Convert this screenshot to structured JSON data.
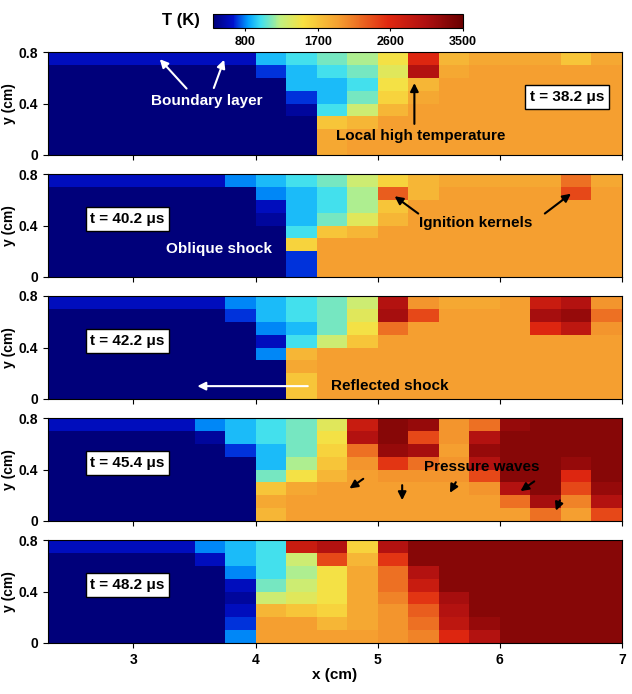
{
  "colorbar": {
    "label": "T (K)",
    "range": [
      400,
      3500
    ],
    "ticks": [
      800,
      1700,
      2600,
      3500
    ]
  },
  "chart_data": [
    {
      "type": "heatmap",
      "xlim": [
        2.3,
        7
      ],
      "ylim": [
        0,
        0.8
      ],
      "xticks": [
        3,
        4,
        5,
        6,
        7
      ],
      "yticks": [
        0,
        0.4,
        0.8
      ],
      "ylabel": "y (cm)",
      "tick_labels": "y",
      "annotations": [
        "t = 38.2 μs",
        "Boundary layer",
        "Local high temperature"
      ],
      "x_edges": [
        2.3,
        2.5,
        2.75,
        3,
        3.25,
        3.5,
        3.75,
        4,
        4.25,
        4.5,
        4.75,
        5,
        5.25,
        5.5,
        5.75,
        6,
        6.25,
        6.5,
        6.75,
        7
      ],
      "y_edges": [
        0.8,
        0.7,
        0.6,
        0.5,
        0.4,
        0.3,
        0.2,
        0.1,
        0
      ],
      "cells": [
        [
          600,
          600,
          600,
          600,
          600,
          600,
          600,
          900,
          1000,
          1100,
          1200,
          1500,
          2600,
          1800,
          1900,
          1900,
          1900,
          1700,
          1900
        ],
        [
          400,
          400,
          400,
          400,
          400,
          400,
          400,
          700,
          900,
          1000,
          1100,
          1400,
          3000,
          1900,
          1950,
          1950,
          1950,
          1950,
          1950
        ],
        [
          400,
          400,
          400,
          400,
          400,
          400,
          400,
          400,
          900,
          900,
          1000,
          1500,
          1800,
          1950,
          1950,
          1950,
          1950,
          1950,
          1950
        ],
        [
          400,
          400,
          400,
          400,
          400,
          400,
          400,
          400,
          700,
          900,
          1100,
          1600,
          1900,
          1950,
          1950,
          1950,
          1950,
          1950,
          1950
        ],
        [
          400,
          400,
          400,
          400,
          400,
          400,
          400,
          400,
          500,
          1000,
          1300,
          1800,
          1950,
          1950,
          1950,
          1950,
          1950,
          1950,
          1950
        ],
        [
          400,
          400,
          400,
          400,
          400,
          400,
          400,
          400,
          400,
          1700,
          1800,
          1950,
          1950,
          1950,
          1950,
          1950,
          1950,
          1950,
          1950
        ],
        [
          400,
          400,
          400,
          400,
          400,
          400,
          400,
          400,
          400,
          1900,
          1950,
          1950,
          1950,
          1950,
          1950,
          1950,
          1950,
          1950,
          1950
        ],
        [
          400,
          400,
          400,
          400,
          400,
          400,
          400,
          400,
          400,
          1900,
          1950,
          1950,
          1950,
          1950,
          1950,
          1950,
          1950,
          1950,
          1950
        ]
      ]
    },
    {
      "type": "heatmap",
      "xlim": [
        2.3,
        7
      ],
      "ylim": [
        0,
        0.8
      ],
      "xticks": [
        3,
        4,
        5,
        6,
        7
      ],
      "yticks": [
        0,
        0.4,
        0.8
      ],
      "ylabel": "y (cm)",
      "tick_labels": "y",
      "annotations": [
        "t = 40.2 μs",
        "Oblique shock",
        "Ignition kernels"
      ],
      "x_edges": [
        2.3,
        2.5,
        2.75,
        3,
        3.25,
        3.5,
        3.75,
        4,
        4.25,
        4.5,
        4.75,
        5,
        5.25,
        5.5,
        5.75,
        6,
        6.25,
        6.5,
        6.75,
        7
      ],
      "y_edges": [
        0.8,
        0.7,
        0.6,
        0.5,
        0.4,
        0.3,
        0.2,
        0.1,
        0
      ],
      "cells": [
        [
          600,
          600,
          600,
          600,
          600,
          600,
          800,
          900,
          1000,
          1100,
          1300,
          1600,
          1800,
          1900,
          1900,
          1900,
          1900,
          2200,
          1900
        ],
        [
          400,
          400,
          400,
          400,
          400,
          400,
          400,
          800,
          900,
          1000,
          1200,
          2300,
          1800,
          1950,
          1950,
          1950,
          1950,
          2400,
          1950
        ],
        [
          400,
          400,
          400,
          400,
          400,
          400,
          400,
          600,
          900,
          1000,
          1200,
          1700,
          1950,
          1950,
          1950,
          1950,
          1950,
          1950,
          1950
        ],
        [
          400,
          400,
          400,
          400,
          400,
          400,
          400,
          500,
          900,
          1100,
          1400,
          1800,
          1950,
          1950,
          1950,
          1950,
          1950,
          1950,
          1950
        ],
        [
          400,
          400,
          400,
          400,
          400,
          400,
          400,
          400,
          1000,
          1700,
          1800,
          1950,
          1950,
          1950,
          1950,
          1950,
          1950,
          1950,
          1950
        ],
        [
          400,
          400,
          400,
          400,
          400,
          400,
          400,
          400,
          1600,
          1950,
          1950,
          1950,
          1950,
          1950,
          1950,
          1950,
          1950,
          1950,
          1950
        ],
        [
          400,
          400,
          400,
          400,
          400,
          400,
          400,
          400,
          700,
          1950,
          1950,
          1950,
          1950,
          1950,
          1950,
          1950,
          1950,
          1950,
          1950
        ],
        [
          400,
          400,
          400,
          400,
          400,
          400,
          400,
          400,
          700,
          1950,
          1950,
          1950,
          1950,
          1950,
          1950,
          1950,
          1950,
          1950,
          1950
        ]
      ]
    },
    {
      "type": "heatmap",
      "xlim": [
        2.3,
        7
      ],
      "ylim": [
        0,
        0.8
      ],
      "xticks": [
        3,
        4,
        5,
        6,
        7
      ],
      "yticks": [
        0,
        0.4,
        0.8
      ],
      "ylabel": "y (cm)",
      "tick_labels": "y",
      "annotations": [
        "t = 42.2 μs",
        "Reflected shock"
      ],
      "x_edges": [
        2.3,
        2.5,
        2.75,
        3,
        3.25,
        3.5,
        3.75,
        4,
        4.25,
        4.5,
        4.75,
        5,
        5.25,
        5.5,
        5.75,
        6,
        6.25,
        6.5,
        6.75,
        7
      ],
      "y_edges": [
        0.8,
        0.7,
        0.6,
        0.5,
        0.4,
        0.3,
        0.2,
        0.1,
        0
      ],
      "cells": [
        [
          600,
          600,
          600,
          600,
          600,
          600,
          800,
          900,
          1000,
          1100,
          1300,
          3000,
          2000,
          1900,
          1900,
          1950,
          2800,
          3000,
          2000
        ],
        [
          400,
          400,
          400,
          400,
          400,
          400,
          700,
          900,
          1000,
          1100,
          1400,
          3100,
          2400,
          1950,
          1950,
          1950,
          3100,
          3200,
          2200
        ],
        [
          400,
          400,
          400,
          400,
          400,
          400,
          400,
          800,
          900,
          1100,
          1500,
          2200,
          1950,
          1950,
          1950,
          1950,
          2600,
          2900,
          2000
        ],
        [
          400,
          400,
          400,
          400,
          400,
          400,
          400,
          600,
          1000,
          1300,
          1700,
          1950,
          1950,
          1950,
          1950,
          1950,
          1950,
          1950,
          1950
        ],
        [
          400,
          400,
          400,
          400,
          400,
          400,
          400,
          800,
          1800,
          1950,
          1950,
          1950,
          1950,
          1950,
          1950,
          1950,
          1950,
          1950,
          1950
        ],
        [
          400,
          400,
          400,
          400,
          400,
          400,
          400,
          400,
          1900,
          1950,
          1950,
          1950,
          1950,
          1950,
          1950,
          1950,
          1950,
          1950,
          1950
        ],
        [
          400,
          400,
          400,
          400,
          400,
          400,
          400,
          400,
          1700,
          1950,
          1950,
          1950,
          1950,
          1950,
          1950,
          1950,
          1950,
          1950,
          1950
        ],
        [
          400,
          400,
          400,
          400,
          400,
          400,
          400,
          400,
          1700,
          1950,
          1950,
          1950,
          1950,
          1950,
          1950,
          1950,
          1950,
          1950,
          1950
        ]
      ]
    },
    {
      "type": "heatmap",
      "xlim": [
        2.3,
        7
      ],
      "ylim": [
        0,
        0.8
      ],
      "xticks": [
        3,
        4,
        5,
        6,
        7
      ],
      "yticks": [
        0,
        0.4,
        0.8
      ],
      "ylabel": "y (cm)",
      "tick_labels": "y",
      "annotations": [
        "t = 45.4 μs",
        "Pressure waves"
      ],
      "x_edges": [
        2.3,
        2.5,
        2.75,
        3,
        3.25,
        3.5,
        3.75,
        4,
        4.25,
        4.5,
        4.75,
        5,
        5.25,
        5.5,
        5.75,
        6,
        6.25,
        6.5,
        6.75,
        7
      ],
      "y_edges": [
        0.8,
        0.7,
        0.6,
        0.5,
        0.4,
        0.3,
        0.2,
        0.1,
        0
      ],
      "cells": [
        [
          600,
          600,
          600,
          600,
          600,
          800,
          900,
          1000,
          1100,
          1400,
          2800,
          3300,
          3200,
          2000,
          2200,
          3200,
          3300,
          3300,
          3300
        ],
        [
          400,
          400,
          400,
          400,
          400,
          500,
          900,
          1000,
          1100,
          1500,
          3000,
          3300,
          2400,
          2000,
          3000,
          3300,
          3300,
          3300,
          3300
        ],
        [
          400,
          400,
          400,
          400,
          400,
          400,
          700,
          900,
          1100,
          1600,
          2200,
          3200,
          3100,
          1950,
          3200,
          3300,
          3300,
          3300,
          3300
        ],
        [
          400,
          400,
          400,
          400,
          400,
          400,
          400,
          900,
          1200,
          1700,
          2000,
          2500,
          2200,
          2000,
          3000,
          3300,
          3300,
          3200,
          3300
        ],
        [
          400,
          400,
          400,
          400,
          400,
          400,
          400,
          1100,
          1500,
          1800,
          1950,
          2000,
          2000,
          2000,
          2400,
          3300,
          3300,
          2600,
          3300
        ],
        [
          400,
          400,
          400,
          400,
          400,
          400,
          400,
          1700,
          1900,
          1950,
          1950,
          1950,
          1950,
          1950,
          2000,
          3000,
          3300,
          2400,
          3200
        ],
        [
          400,
          400,
          400,
          400,
          400,
          400,
          400,
          1900,
          1950,
          1950,
          1950,
          1950,
          1950,
          1950,
          1950,
          2200,
          3100,
          2100,
          3000
        ],
        [
          400,
          400,
          400,
          400,
          400,
          400,
          400,
          1800,
          1950,
          1950,
          1950,
          1950,
          1950,
          1950,
          1950,
          1950,
          2200,
          1950,
          2400
        ]
      ]
    },
    {
      "type": "heatmap",
      "xlim": [
        2.3,
        7
      ],
      "ylim": [
        0,
        0.8
      ],
      "xticks": [
        3,
        4,
        5,
        6,
        7
      ],
      "yticks": [
        0,
        0.4,
        0.8
      ],
      "ylabel": "y (cm)",
      "xlabel": "x (cm)",
      "annotations": [
        "t = 48.2 μs"
      ],
      "x_edges": [
        2.3,
        2.5,
        2.75,
        3,
        3.25,
        3.5,
        3.75,
        4,
        4.25,
        4.5,
        4.75,
        5,
        5.25,
        5.5,
        5.75,
        6,
        6.25,
        6.5,
        6.75,
        7
      ],
      "y_edges": [
        0.8,
        0.7,
        0.6,
        0.5,
        0.4,
        0.3,
        0.2,
        0.1,
        0
      ],
      "cells": [
        [
          600,
          600,
          600,
          600,
          600,
          800,
          900,
          1000,
          2800,
          3000,
          1600,
          3000,
          3300,
          3300,
          3300,
          3300,
          3300,
          3300,
          3300
        ],
        [
          400,
          400,
          400,
          400,
          400,
          600,
          900,
          1000,
          1300,
          2400,
          1800,
          2500,
          3300,
          3300,
          3300,
          3300,
          3300,
          3300,
          3300
        ],
        [
          400,
          400,
          400,
          400,
          400,
          400,
          800,
          1000,
          1200,
          1500,
          1900,
          2200,
          3000,
          3300,
          3300,
          3300,
          3300,
          3300,
          3300
        ],
        [
          400,
          400,
          400,
          400,
          400,
          400,
          600,
          1100,
          1300,
          1500,
          1900,
          2200,
          2800,
          3300,
          3300,
          3300,
          3300,
          3300,
          3300
        ],
        [
          400,
          400,
          400,
          400,
          400,
          400,
          500,
          1300,
          1400,
          1500,
          1900,
          2100,
          2500,
          3100,
          3300,
          3300,
          3300,
          3300,
          3300
        ],
        [
          400,
          400,
          400,
          400,
          400,
          400,
          600,
          1800,
          1700,
          1600,
          1900,
          2000,
          2300,
          3000,
          3300,
          3300,
          3300,
          3300,
          3300
        ],
        [
          400,
          400,
          400,
          400,
          400,
          400,
          700,
          1950,
          1950,
          1800,
          1900,
          2000,
          2200,
          2900,
          3200,
          3300,
          3300,
          3300,
          3300
        ],
        [
          400,
          400,
          400,
          400,
          400,
          400,
          800,
          1950,
          1950,
          1950,
          1950,
          2000,
          2100,
          2600,
          3000,
          3300,
          3300,
          3300,
          3300
        ]
      ]
    }
  ]
}
